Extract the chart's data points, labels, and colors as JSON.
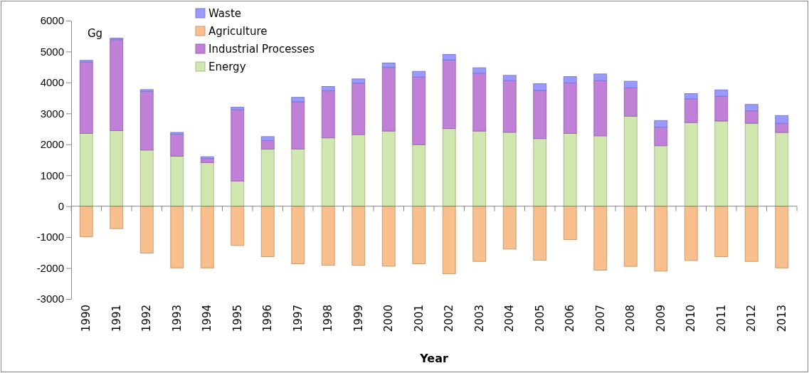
{
  "chart_data": {
    "type": "bar",
    "stacked": true,
    "xlabel": "Year",
    "ylabel": "Gg",
    "categories": [
      "1990",
      "1991",
      "1992",
      "1993",
      "1994",
      "1995",
      "1996",
      "1997",
      "1998",
      "1999",
      "2000",
      "2001",
      "2002",
      "2003",
      "2004",
      "2005",
      "2006",
      "2007",
      "2008",
      "2009",
      "2010",
      "2011",
      "2012",
      "2013"
    ],
    "series": [
      {
        "name": "Energy",
        "color": "#d0e8b0",
        "values": [
          2355,
          2445,
          1815,
          1615,
          1410,
          815,
          1845,
          1850,
          2210,
          2315,
          2430,
          1990,
          2510,
          2430,
          2390,
          2185,
          2355,
          2275,
          2910,
          1955,
          2705,
          2755,
          2680,
          2385
        ]
      },
      {
        "name": "Industrial Processes",
        "color": "#c080d8",
        "values": [
          2305,
          2940,
          1900,
          715,
          135,
          2305,
          280,
          1530,
          1520,
          1665,
          2060,
          2185,
          2220,
          1870,
          1670,
          1560,
          1635,
          1785,
          920,
          605,
          765,
          800,
          405,
          295
        ]
      },
      {
        "name": "Agriculture",
        "color": "#f9bf8c",
        "values": [
          -990,
          -725,
          -1515,
          -1995,
          -1995,
          -1270,
          -1630,
          -1860,
          -1910,
          -1910,
          -1940,
          -1860,
          -2185,
          -1785,
          -1385,
          -1745,
          -1080,
          -2065,
          -1945,
          -2100,
          -1755,
          -1630,
          -1785,
          -1995
        ]
      },
      {
        "name": "Waste",
        "color": "#9999ff",
        "values": [
          55,
          50,
          55,
          55,
          55,
          80,
          125,
          140,
          140,
          135,
          140,
          185,
          175,
          175,
          170,
          215,
          200,
          215,
          210,
          210,
          170,
          205,
          205,
          250
        ]
      }
    ],
    "ylim": [
      -3000,
      6000
    ],
    "yticks": [
      -3000,
      -2000,
      -1000,
      0,
      1000,
      2000,
      3000,
      4000,
      5000,
      6000
    ],
    "legend": "top left"
  }
}
